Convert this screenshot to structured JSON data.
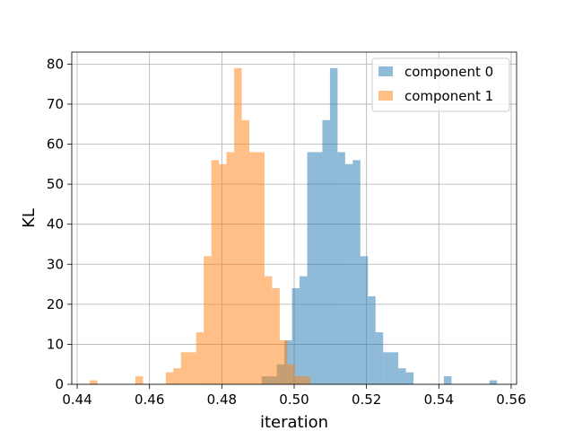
{
  "chart_data": {
    "type": "histogram",
    "xlabel": "iteration",
    "ylabel": "KL",
    "xlim": [
      0.4385,
      0.5615
    ],
    "ylim": [
      0,
      83
    ],
    "xticks": [
      0.44,
      0.46,
      0.48,
      0.5,
      0.52,
      0.54,
      0.56
    ],
    "xtick_labels": [
      "0.44",
      "0.46",
      "0.48",
      "0.50",
      "0.52",
      "0.54",
      "0.56"
    ],
    "yticks": [
      0,
      10,
      20,
      30,
      40,
      50,
      60,
      70,
      80
    ],
    "ytick_labels": [
      "0",
      "10",
      "20",
      "30",
      "40",
      "50",
      "60",
      "70",
      "80"
    ],
    "grid": true,
    "legend_position": "top-right",
    "bin_width": 0.0021,
    "series": [
      {
        "name": "component 0",
        "color": "#1f77b4",
        "opacity": 0.5,
        "bins": [
          {
            "x0": 0.491,
            "count": 2
          },
          {
            "x0": 0.4931,
            "count": 2
          },
          {
            "x0": 0.4952,
            "count": 5
          },
          {
            "x0": 0.4973,
            "count": 11
          },
          {
            "x0": 0.4994,
            "count": 24
          },
          {
            "x0": 0.5015,
            "count": 27
          },
          {
            "x0": 0.5036,
            "count": 58
          },
          {
            "x0": 0.5057,
            "count": 58
          },
          {
            "x0": 0.5078,
            "count": 66
          },
          {
            "x0": 0.5099,
            "count": 79
          },
          {
            "x0": 0.512,
            "count": 58
          },
          {
            "x0": 0.5141,
            "count": 55
          },
          {
            "x0": 0.5162,
            "count": 56
          },
          {
            "x0": 0.5183,
            "count": 32
          },
          {
            "x0": 0.5204,
            "count": 22
          },
          {
            "x0": 0.5225,
            "count": 13
          },
          {
            "x0": 0.5246,
            "count": 8
          },
          {
            "x0": 0.5267,
            "count": 8
          },
          {
            "x0": 0.5288,
            "count": 4
          },
          {
            "x0": 0.5309,
            "count": 3
          },
          {
            "x0": 0.5414,
            "count": 2
          },
          {
            "x0": 0.554,
            "count": 1
          }
        ]
      },
      {
        "name": "component 1",
        "color": "#ff7f0e",
        "opacity": 0.5,
        "bins": [
          {
            "x0": 0.4435,
            "count": 1
          },
          {
            "x0": 0.4561,
            "count": 2
          },
          {
            "x0": 0.4645,
            "count": 3
          },
          {
            "x0": 0.4666,
            "count": 4
          },
          {
            "x0": 0.4687,
            "count": 8
          },
          {
            "x0": 0.4708,
            "count": 8
          },
          {
            "x0": 0.4729,
            "count": 13
          },
          {
            "x0": 0.475,
            "count": 32
          },
          {
            "x0": 0.4771,
            "count": 56
          },
          {
            "x0": 0.4792,
            "count": 55
          },
          {
            "x0": 0.4813,
            "count": 58
          },
          {
            "x0": 0.4834,
            "count": 79
          },
          {
            "x0": 0.4855,
            "count": 66
          },
          {
            "x0": 0.4876,
            "count": 58
          },
          {
            "x0": 0.4897,
            "count": 58
          },
          {
            "x0": 0.4918,
            "count": 27
          },
          {
            "x0": 0.4939,
            "count": 24
          },
          {
            "x0": 0.496,
            "count": 11
          },
          {
            "x0": 0.4981,
            "count": 5
          },
          {
            "x0": 0.5002,
            "count": 2
          },
          {
            "x0": 0.5023,
            "count": 2
          }
        ]
      }
    ]
  }
}
